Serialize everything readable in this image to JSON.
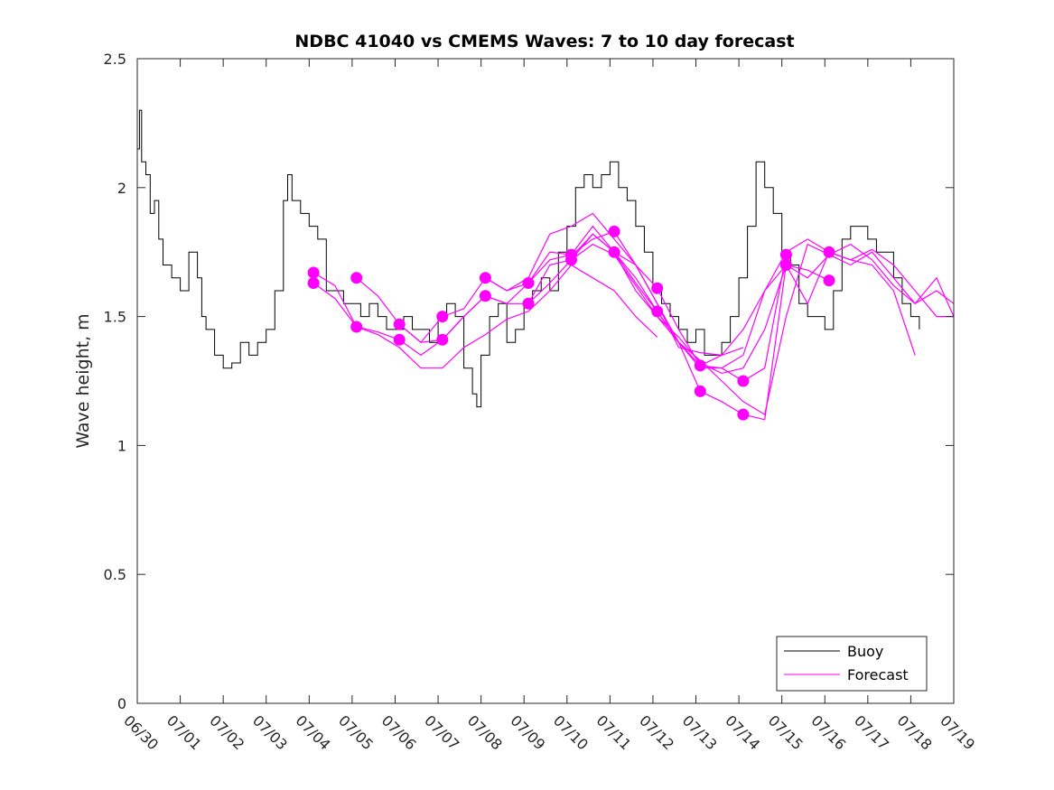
{
  "chart_data": {
    "type": "line",
    "title": "NDBC 41040 vs CMEMS Waves: 7 to 10 day forecast",
    "xlabel": "",
    "ylabel": "Wave height, m",
    "x_unit": "days since 06/30",
    "xlim": [
      0,
      19
    ],
    "ylim": [
      0,
      2.5
    ],
    "yticks": [
      0,
      0.5,
      1,
      1.5,
      2,
      2.5
    ],
    "ytick_labels": [
      "0",
      "0.5",
      "1",
      "1.5",
      "2",
      "2.5"
    ],
    "xtick_labels": [
      "06/30",
      "07/01",
      "07/02",
      "07/03",
      "07/04",
      "07/05",
      "07/06",
      "07/07",
      "07/08",
      "07/09",
      "07/10",
      "07/11",
      "07/12",
      "07/13",
      "07/14",
      "07/15",
      "07/16",
      "07/17",
      "07/18",
      "07/19"
    ],
    "grid": false,
    "legend": {
      "position": "bottom-right",
      "entries": [
        "Buoy",
        "Forecast"
      ]
    },
    "colors": {
      "buoy": "#000000",
      "forecast": "#ff00ff"
    },
    "buoy": {
      "name": "Buoy",
      "x": [
        0,
        0.05,
        0.1,
        0.2,
        0.3,
        0.4,
        0.5,
        0.6,
        0.8,
        1.0,
        1.2,
        1.4,
        1.5,
        1.6,
        1.8,
        2.0,
        2.2,
        2.4,
        2.6,
        2.8,
        3.0,
        3.2,
        3.4,
        3.5,
        3.6,
        3.8,
        4.0,
        4.2,
        4.4,
        4.6,
        4.8,
        5.0,
        5.2,
        5.4,
        5.6,
        5.8,
        6.0,
        6.2,
        6.4,
        6.6,
        6.8,
        7.0,
        7.2,
        7.4,
        7.6,
        7.8,
        7.9,
        8.0,
        8.2,
        8.4,
        8.6,
        8.8,
        9.0,
        9.2,
        9.4,
        9.6,
        9.8,
        10.0,
        10.2,
        10.4,
        10.6,
        10.8,
        11.0,
        11.2,
        11.4,
        11.6,
        11.8,
        12.0,
        12.2,
        12.4,
        12.6,
        12.8,
        13.0,
        13.2,
        13.4,
        13.6,
        13.8,
        14.0,
        14.2,
        14.4,
        14.6,
        14.8,
        15.0,
        15.2,
        15.4,
        15.6,
        15.8,
        16.0,
        16.2,
        16.4,
        16.6,
        16.8,
        17.0,
        17.2,
        17.4,
        17.6,
        17.8,
        18.0,
        18.2
      ],
      "values": [
        2.15,
        2.3,
        2.1,
        2.05,
        1.9,
        1.95,
        1.8,
        1.7,
        1.65,
        1.6,
        1.75,
        1.65,
        1.5,
        1.45,
        1.35,
        1.3,
        1.32,
        1.4,
        1.35,
        1.4,
        1.45,
        1.6,
        1.95,
        2.05,
        1.95,
        1.9,
        1.85,
        1.8,
        1.6,
        1.6,
        1.55,
        1.55,
        1.5,
        1.55,
        1.5,
        1.45,
        1.45,
        1.5,
        1.45,
        1.45,
        1.4,
        1.5,
        1.55,
        1.5,
        1.3,
        1.2,
        1.15,
        1.35,
        1.5,
        1.55,
        1.4,
        1.45,
        1.55,
        1.6,
        1.65,
        1.6,
        1.75,
        1.85,
        2.0,
        2.05,
        2.0,
        2.05,
        2.1,
        2.0,
        1.95,
        1.85,
        1.75,
        1.6,
        1.55,
        1.5,
        1.45,
        1.4,
        1.45,
        1.35,
        1.35,
        1.4,
        1.5,
        1.65,
        1.85,
        2.1,
        2.0,
        1.9,
        1.75,
        1.7,
        1.55,
        1.5,
        1.5,
        1.45,
        1.6,
        1.8,
        1.85,
        1.85,
        1.8,
        1.75,
        1.75,
        1.65,
        1.55,
        1.5,
        1.45
      ]
    },
    "forecast": [
      {
        "name": "Forecast",
        "x": [
          4.1,
          4.6,
          5.1,
          5.6,
          6.1,
          6.6,
          7.1,
          7.6,
          8.1,
          8.6,
          9.1,
          9.6,
          10.1,
          10.6,
          11.1,
          11.6,
          12.1,
          12.6,
          13.1,
          13.6,
          14.1
        ],
        "values": [
          1.67,
          1.62,
          1.46,
          1.44,
          1.41,
          1.35,
          1.41,
          1.5,
          1.58,
          1.55,
          1.55,
          1.63,
          1.72,
          1.82,
          1.75,
          1.63,
          1.52,
          1.4,
          1.31,
          1.35,
          1.38
        ]
      },
      {
        "name": "Forecast",
        "x": [
          4.1,
          4.6,
          5.1,
          5.6,
          6.1,
          6.6,
          7.1,
          7.6,
          8.1,
          8.6,
          9.1,
          9.6,
          10.1,
          10.6,
          11.1,
          11.6,
          12.1
        ],
        "values": [
          1.63,
          1.57,
          1.46,
          1.43,
          1.38,
          1.3,
          1.3,
          1.38,
          1.43,
          1.49,
          1.52,
          1.6,
          1.7,
          1.65,
          1.6,
          1.5,
          1.42
        ]
      },
      {
        "name": "Forecast",
        "x": [
          5.1,
          5.6,
          6.1,
          6.6,
          7.1,
          7.6,
          8.1,
          8.6,
          9.1,
          9.6,
          10.1,
          10.6,
          11.1,
          11.6,
          12.1,
          12.6,
          13.1,
          13.6,
          14.1,
          14.6,
          15.1
        ],
        "values": [
          1.65,
          1.58,
          1.47,
          1.4,
          1.5,
          1.53,
          1.65,
          1.6,
          1.63,
          1.72,
          1.74,
          1.8,
          1.83,
          1.7,
          1.61,
          1.45,
          1.31,
          1.3,
          1.25,
          1.3,
          1.74
        ]
      },
      {
        "name": "Forecast",
        "x": [
          6.1,
          6.6,
          7.1,
          7.6,
          8.1,
          8.6,
          9.1,
          9.6,
          10.1,
          10.6,
          11.1,
          11.6,
          12.1,
          12.6,
          13.1,
          13.6,
          14.1,
          14.6,
          15.1,
          15.6,
          16.1
        ],
        "values": [
          1.47,
          1.4,
          1.41,
          1.5,
          1.58,
          1.55,
          1.63,
          1.75,
          1.74,
          1.85,
          1.75,
          1.65,
          1.52,
          1.4,
          1.21,
          1.17,
          1.12,
          1.1,
          1.7,
          1.68,
          1.64
        ]
      },
      {
        "name": "Forecast",
        "x": [
          8.1,
          8.6,
          9.1,
          9.6,
          10.1,
          10.6,
          11.1,
          11.6,
          12.1,
          12.6,
          13.1,
          13.6,
          14.1,
          14.6,
          15.1,
          15.6,
          16.1,
          16.6,
          17.1,
          17.6,
          18.1
        ],
        "values": [
          1.65,
          1.6,
          1.65,
          1.82,
          1.85,
          1.9,
          1.8,
          1.7,
          1.55,
          1.38,
          1.36,
          1.35,
          1.45,
          1.6,
          1.75,
          1.8,
          1.75,
          1.72,
          1.7,
          1.6,
          1.35
        ]
      },
      {
        "name": "Forecast",
        "x": [
          9.1,
          9.6,
          10.1,
          10.6,
          11.1,
          11.6,
          12.1,
          12.6,
          13.1,
          13.6,
          14.1,
          14.6,
          15.1,
          15.6,
          16.1,
          16.6,
          17.1,
          17.6,
          18.1,
          18.6,
          19.0
        ],
        "values": [
          1.55,
          1.7,
          1.72,
          1.78,
          1.74,
          1.62,
          1.5,
          1.4,
          1.33,
          1.25,
          1.17,
          1.12,
          1.5,
          1.78,
          1.74,
          1.7,
          1.75,
          1.65,
          1.55,
          1.65,
          1.5
        ]
      },
      {
        "name": "Forecast",
        "x": [
          10.1,
          10.6,
          11.1,
          11.6,
          12.1,
          12.6,
          13.1,
          13.6,
          14.1,
          14.6,
          15.1,
          15.6,
          16.1,
          16.6,
          17.1,
          17.6,
          18.1,
          18.6,
          19.0
        ],
        "values": [
          1.73,
          1.82,
          1.75,
          1.6,
          1.5,
          1.42,
          1.32,
          1.28,
          1.3,
          1.45,
          1.7,
          1.65,
          1.74,
          1.78,
          1.72,
          1.62,
          1.55,
          1.6,
          1.55
        ]
      },
      {
        "name": "Forecast",
        "x": [
          11.1,
          11.6,
          12.1,
          12.6,
          13.1,
          13.6,
          14.1,
          14.6,
          15.1,
          15.6,
          16.1,
          16.6,
          17.1,
          17.6,
          18.1,
          18.6,
          19.0
        ],
        "values": [
          1.75,
          1.7,
          1.55,
          1.4,
          1.3,
          1.3,
          1.35,
          1.6,
          1.7,
          1.55,
          1.75,
          1.72,
          1.76,
          1.7,
          1.6,
          1.5,
          1.5
        ]
      }
    ],
    "forecast_start_points": {
      "x": [
        4.1,
        4.1,
        5.1,
        5.1,
        6.1,
        6.1,
        7.1,
        7.1,
        8.1,
        8.1,
        9.1,
        9.1,
        10.1,
        10.1,
        11.1,
        11.1,
        12.1,
        12.1,
        13.1,
        13.1,
        14.1,
        14.1,
        15.1,
        15.1,
        16.1,
        16.1
      ],
      "values": [
        1.67,
        1.63,
        1.65,
        1.46,
        1.47,
        1.41,
        1.5,
        1.41,
        1.65,
        1.58,
        1.63,
        1.55,
        1.74,
        1.72,
        1.83,
        1.75,
        1.61,
        1.52,
        1.31,
        1.21,
        1.25,
        1.12,
        1.74,
        1.7,
        1.75,
        1.64
      ]
    }
  }
}
